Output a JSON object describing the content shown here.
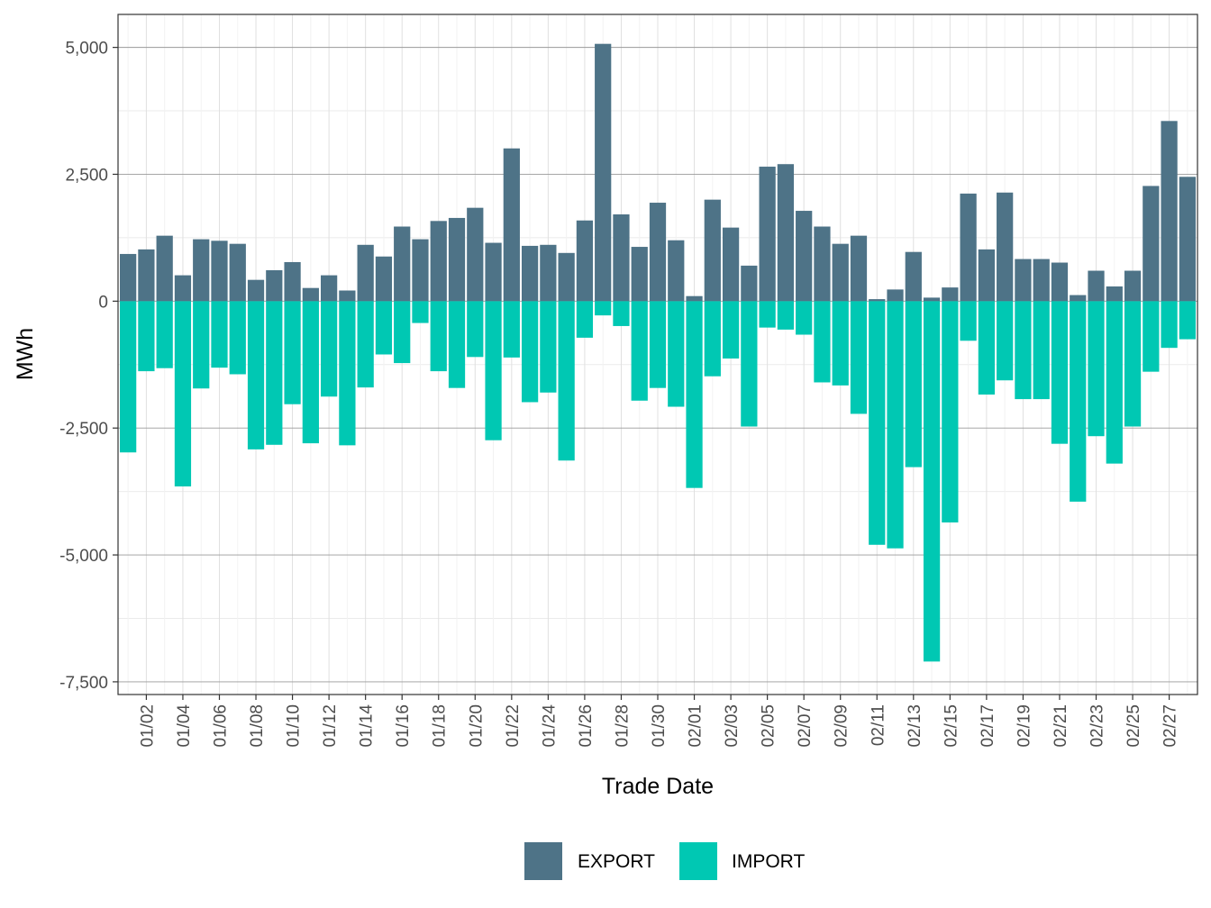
{
  "chart_data": {
    "type": "bar",
    "stacked": "diverging",
    "xlabel": "Trade Date",
    "ylabel": "MWh",
    "ylim": [
      -7750,
      5650
    ],
    "y_ticks": [
      5000,
      2500,
      0,
      -2500,
      -5000,
      -7500
    ],
    "y_tick_labels": [
      "5,000",
      "2,500",
      "0",
      "-2,500",
      "-5,000",
      "-7,500"
    ],
    "grid": true,
    "legend_position": "bottom",
    "categories": [
      "01/01",
      "01/02",
      "01/03",
      "01/04",
      "01/05",
      "01/06",
      "01/07",
      "01/08",
      "01/09",
      "01/10",
      "01/11",
      "01/12",
      "01/13",
      "01/14",
      "01/15",
      "01/16",
      "01/17",
      "01/18",
      "01/19",
      "01/20",
      "01/21",
      "01/22",
      "01/23",
      "01/24",
      "01/25",
      "01/26",
      "01/27",
      "01/28",
      "01/29",
      "01/30",
      "01/31",
      "02/01",
      "02/02",
      "02/03",
      "02/04",
      "02/05",
      "02/06",
      "02/07",
      "02/08",
      "02/09",
      "02/10",
      "02/11",
      "02/12",
      "02/13",
      "02/14",
      "02/15",
      "02/16",
      "02/17",
      "02/18",
      "02/19",
      "02/20",
      "02/21",
      "02/22",
      "02/23",
      "02/24",
      "02/25",
      "02/26",
      "02/27",
      "02/28"
    ],
    "x_tick_labels": [
      "01/02",
      "01/04",
      "01/06",
      "01/08",
      "01/10",
      "01/12",
      "01/14",
      "01/16",
      "01/18",
      "01/20",
      "01/22",
      "01/24",
      "01/26",
      "01/28",
      "01/30",
      "02/01",
      "02/03",
      "02/05",
      "02/07",
      "02/09",
      "02/11",
      "02/13",
      "02/15",
      "02/17",
      "02/19",
      "02/21",
      "02/23",
      "02/25",
      "02/27"
    ],
    "series": [
      {
        "name": "EXPORT",
        "color": "#4e7387",
        "values": [
          930,
          1020,
          1290,
          510,
          1220,
          1190,
          1130,
          420,
          610,
          770,
          260,
          510,
          210,
          1110,
          880,
          1470,
          1220,
          1580,
          1640,
          1840,
          1150,
          3010,
          1090,
          1110,
          950,
          1590,
          5070,
          1710,
          1070,
          1940,
          1200,
          100,
          2000,
          1450,
          700,
          2650,
          2700,
          1780,
          1470,
          1130,
          1290,
          40,
          230,
          970,
          70,
          270,
          2120,
          1020,
          2140,
          830,
          830,
          760,
          120,
          600,
          290,
          600,
          2270,
          3550,
          2450
        ]
      },
      {
        "name": "IMPORT",
        "color": "#00c8b3",
        "values": [
          -2980,
          -1380,
          -1320,
          -3650,
          -1720,
          -1310,
          -1440,
          -2920,
          -2830,
          -2030,
          -2800,
          -1880,
          -2840,
          -1700,
          -1050,
          -1220,
          -430,
          -1380,
          -1710,
          -1100,
          -2740,
          -1110,
          -1990,
          -1800,
          -3140,
          -720,
          -280,
          -490,
          -1960,
          -1710,
          -2080,
          -3680,
          -1480,
          -1130,
          -2470,
          -520,
          -560,
          -660,
          -1600,
          -1660,
          -2220,
          -4800,
          -4870,
          -3270,
          -7100,
          -4360,
          -780,
          -1840,
          -1560,
          -1930,
          -1930,
          -2810,
          -3950,
          -2660,
          -3200,
          -2470,
          -1390,
          -920,
          -750
        ]
      }
    ]
  }
}
